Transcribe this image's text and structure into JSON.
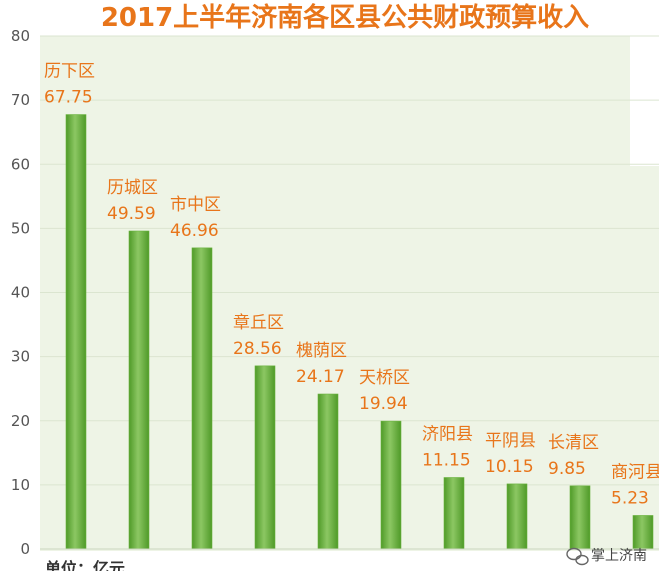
{
  "chart_data": {
    "type": "bar",
    "title": "2017上半年济南各区县公共财政预算收入",
    "categories": [
      "历下区",
      "历城区",
      "市中区",
      "章丘区",
      "槐荫区",
      "天桥区",
      "济阳县",
      "平阴县",
      "长清区",
      "商河县"
    ],
    "values": [
      67.75,
      49.59,
      46.96,
      28.56,
      24.17,
      19.94,
      11.15,
      10.15,
      9.85,
      5.23
    ],
    "value_labels": [
      "67.75",
      "49.59",
      "46.96",
      "28.56",
      "24.17",
      "19.94",
      "11.15",
      "10.15",
      "9.85",
      "5.23"
    ],
    "yticks": [
      "0",
      "10",
      "20",
      "30",
      "40",
      "50",
      "60",
      "70",
      "80"
    ],
    "ylim": [
      0,
      80
    ],
    "grid": true,
    "unit_note": "单位：亿元",
    "bar_color": "#6ab33e",
    "label_color": "#e8751a",
    "title_color": "#e8751a",
    "background_color": "#eef4e6"
  },
  "watermark": {
    "icon": "wechat-icon",
    "text": "掌上济南"
  }
}
